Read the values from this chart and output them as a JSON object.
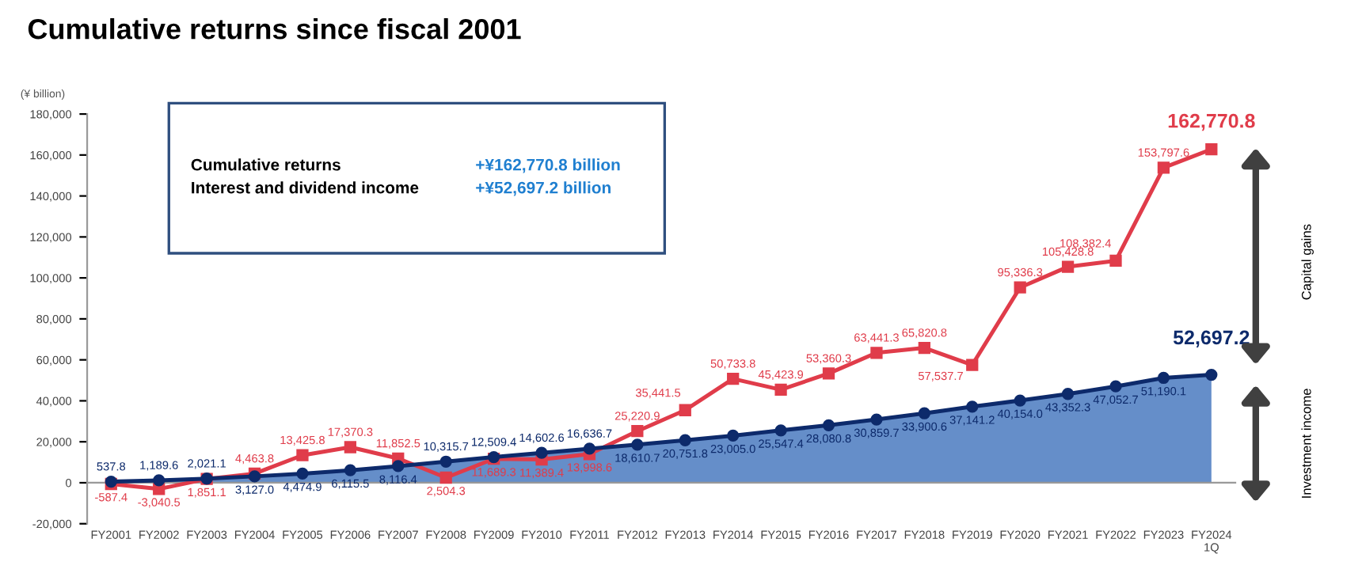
{
  "chart_data": {
    "type": "line",
    "title": "Cumulative returns since fiscal 2001",
    "ylabel": "(¥ billion)",
    "categories": [
      "FY2001",
      "FY2002",
      "FY2003",
      "FY2004",
      "FY2005",
      "FY2006",
      "FY2007",
      "FY2008",
      "FY2009",
      "FY2010",
      "FY2011",
      "FY2012",
      "FY2013",
      "FY2014",
      "FY2015",
      "FY2016",
      "FY2017",
      "FY2018",
      "FY2019",
      "FY2020",
      "FY2021",
      "FY2022",
      "FY2023",
      "FY2024\n1Q"
    ],
    "series": [
      {
        "type": "line",
        "color": "#e03c4a",
        "marker": "square",
        "values": [
          -587.4,
          -3040.5,
          1851.1,
          4463.8,
          13425.8,
          17370.3,
          11852.5,
          2504.3,
          11689.3,
          11389.4,
          13998.6,
          25220.9,
          35441.5,
          50733.8,
          45423.9,
          53360.3,
          63441.3,
          65820.8,
          57537.7,
          95336.3,
          105428.8,
          108382.4,
          153797.6,
          162770.8
        ],
        "value_labels": [
          "-587.4",
          "-3,040.5",
          "1,851.1",
          "4,463.8",
          "13,425.8",
          "17,370.3",
          "11,852.5",
          "2,504.3",
          "11,689.3",
          "11,389.4",
          "13,998.6",
          "25,220.9",
          "35,441.5",
          "50,733.8",
          "45,423.9",
          "53,360.3",
          "63,441.3",
          "65,820.8",
          "57,537.7",
          "95,336.3",
          "105,428.8",
          "108,382.4",
          "153,797.6",
          "162,770.8"
        ]
      },
      {
        "type": "area",
        "color": "#0d2a6b",
        "marker": "circle",
        "values": [
          537.8,
          1189.6,
          2021.1,
          3127.0,
          4474.9,
          6115.5,
          8116.4,
          10315.7,
          12509.4,
          14602.6,
          16636.7,
          18610.7,
          20751.8,
          23005.0,
          25547.4,
          28080.8,
          30859.7,
          33900.6,
          37141.2,
          40154.0,
          43352.3,
          47052.7,
          51190.1,
          52697.2
        ],
        "value_labels": [
          "537.8",
          "1,189.6",
          "2,021.1",
          "3,127.0",
          "4,474.9",
          "6,115.5",
          "8,116.4",
          "10,315.7",
          "12,509.4",
          "14,602.6",
          "16,636.7",
          "18,610.7",
          "20,751.8",
          "23,005.0",
          "25,547.4",
          "28,080.8",
          "30,859.7",
          "33,900.6",
          "37,141.2",
          "40,154.0",
          "43,352.3",
          "47,052.7",
          "51,190.1",
          "52,697.2"
        ]
      }
    ],
    "data_labels": true,
    "ylim": [
      -20000,
      180000
    ],
    "yticks": [
      {
        "value": -20000,
        "label": "-20,000"
      },
      0,
      {
        "value": 20000,
        "label": "20,000"
      },
      {
        "value": 40000,
        "label": "40,000"
      },
      {
        "value": 60000,
        "label": "60,000"
      },
      {
        "value": 80000,
        "label": "80,000"
      },
      {
        "value": 100000,
        "label": "100,000"
      },
      {
        "value": 120000,
        "label": "120,000"
      },
      {
        "value": 140000,
        "label": "140,000"
      },
      {
        "value": 160000,
        "label": "160,000"
      },
      {
        "value": 180000,
        "label": "180,000"
      }
    ],
    "annotations": [
      "Cumulative returns",
      "+¥162,770.8 billion",
      "Interest and dividend income",
      "+¥52,697.2 billion",
      "Capital gains",
      "Investment income"
    ]
  }
}
